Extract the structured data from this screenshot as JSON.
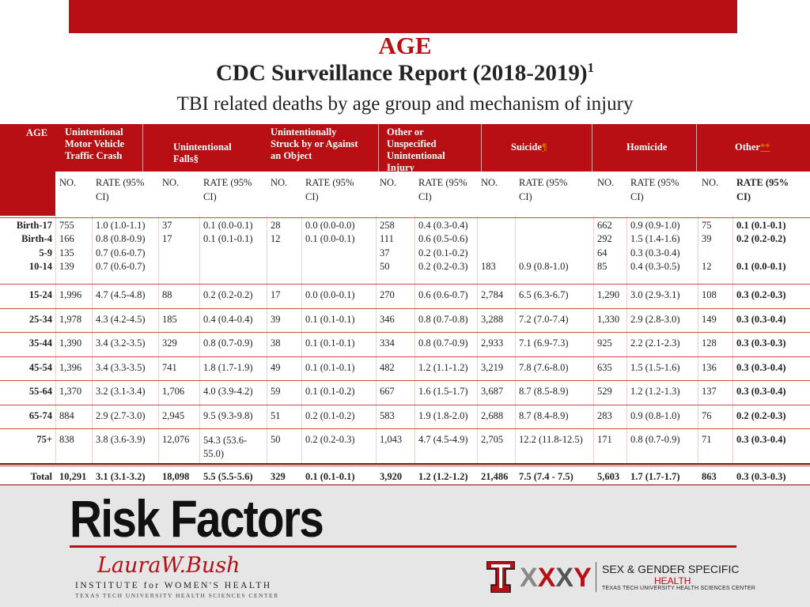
{
  "title": "AGE",
  "report_title": "CDC Surveillance Report (2018-2019)",
  "report_superscript": "1",
  "subtitle": "TBI related deaths by age group and mechanism of injury",
  "header": {
    "age": "AGE",
    "groups": [
      {
        "l1": "Unintentional",
        "l2": "Motor Vehicle",
        "l3": "Traffic Crash",
        "l4": ""
      },
      {
        "l1": "Unintentional",
        "l2": "Falls§",
        "l3": "",
        "l4": ""
      },
      {
        "l1": "Unintentionally",
        "l2": "Struck by or Against",
        "l3": "an Object",
        "l4": ""
      },
      {
        "l1": "Other or",
        "l2": "Unspecified",
        "l3": "Unintentional",
        "l4": "Injury"
      },
      {
        "label": "Suicide",
        "mark": "¶"
      },
      {
        "label": "Homicide"
      },
      {
        "label": "Other",
        "mark": "**"
      }
    ],
    "no_label": "NO.",
    "rate_label_1": "RATE (95%",
    "rate_label_2": "CI)"
  },
  "rows": [
    {
      "age": "Birth-17",
      "v": [
        "755",
        "1.0 (1.0-1.1)",
        "37",
        "0.1 (0.0-0.1)",
        "28",
        "0.0 (0.0-0.0)",
        "258",
        "0.4 (0.3-0.4)",
        "",
        "",
        "662",
        "0.9 (0.9-1.0)",
        "75",
        "0.1 (0.1-0.1)"
      ]
    },
    {
      "age": "Birth-4",
      "v": [
        "166",
        "0.8 (0.8-0.9)",
        "17",
        "0.1 (0.1-0.1)",
        "12",
        "0.1 (0.0-0.1)",
        "111",
        "0.6 (0.5-0.6)",
        "",
        "",
        "292",
        "1.5 (1.4-1.6)",
        "39",
        "0.2 (0.2-0.2)"
      ]
    },
    {
      "age": "5-9",
      "v": [
        "135",
        "0.7 (0.6-0.7)",
        "",
        "",
        "",
        "",
        "37",
        "0.2 (0.1-0.2)",
        "",
        "",
        "64",
        "0.3 (0.3-0.4)",
        "",
        ""
      ]
    },
    {
      "age": "10-14",
      "v": [
        "139",
        "0.7 (0.6-0.7)",
        "",
        "",
        "",
        "",
        "50",
        "0.2 (0.2-0.3)",
        "183",
        "0.9 (0.8-1.0)",
        "85",
        "0.4 (0.3-0.5)",
        "12",
        "0.1 (0.0-0.1)"
      ]
    },
    {
      "age": "15-24",
      "v": [
        "1,996",
        "4.7 (4.5-4.8)",
        "88",
        "0.2 (0.2-0.2)",
        "17",
        "0.0 (0.0-0.1)",
        "270",
        "0.6 (0.6-0.7)",
        "2,784",
        "6.5 (6.3-6.7)",
        "1,290",
        "3.0 (2.9-3.1)",
        "108",
        "0.3 (0.2-0.3)"
      ]
    },
    {
      "age": "25-34",
      "v": [
        "1,978",
        "4.3 (4.2-4.5)",
        "185",
        "0.4 (0.4-0.4)",
        "39",
        "0.1 (0.1-0.1)",
        "346",
        "0.8 (0.7-0.8)",
        "3,288",
        "7.2 (7.0-7.4)",
        "1,330",
        "2.9 (2.8-3.0)",
        "149",
        "0.3 (0.3-0.4)"
      ]
    },
    {
      "age": "35-44",
      "v": [
        "1,390",
        "3.4 (3.2-3.5)",
        "329",
        "0.8 (0.7-0.9)",
        "38",
        "0.1 (0.1-0.1)",
        "334",
        "0.8 (0.7-0.9)",
        "2,933",
        "7.1 (6.9-7.3)",
        "925",
        "2.2 (2.1-2.3)",
        "128",
        "0.3 (0.3-0.3)"
      ]
    },
    {
      "age": "45-54",
      "v": [
        "1,396",
        "3.4 (3.3-3.5)",
        "741",
        "1.8 (1.7-1.9)",
        "49",
        "0.1 (0.1-0.1)",
        "482",
        "1.2 (1.1-1.2)",
        "3,219",
        "7.8 (7.6-8.0)",
        "635",
        "1.5 (1.5-1.6)",
        "136",
        "0.3 (0.3-0.4)"
      ]
    },
    {
      "age": "55-64",
      "v": [
        "1,370",
        "3.2 (3.1-3.4)",
        "1,706",
        "4.0 (3.9-4.2)",
        "59",
        "0.1 (0.1-0.2)",
        "667",
        "1.6 (1.5-1.7)",
        "3,687",
        "8.7 (8.5-8.9)",
        "529",
        "1.2 (1.2-1.3)",
        "137",
        "0.3 (0.3-0.4)"
      ]
    },
    {
      "age": "65-74",
      "v": [
        "884",
        "2.9 (2.7-3.0)",
        "2,945",
        "9.5 (9.3-9.8)",
        "51",
        "0.2 (0.1-0.2)",
        "583",
        "1.9 (1.8-2.0)",
        "2,688",
        "8.7 (8.4-8.9)",
        "283",
        "0.9 (0.8-1.0)",
        "76",
        "0.2 (0.2-0.3)"
      ]
    },
    {
      "age": "75+",
      "v": [
        "838",
        "3.8 (3.6-3.9)",
        "12,076",
        "54.3 (53.6-55.0)",
        "50",
        "0.2 (0.2-0.3)",
        "1,043",
        "4.7 (4.5-4.9)",
        "2,705",
        "12.2 (11.8-12.5)",
        "171",
        "0.8 (0.7-0.9)",
        "71",
        "0.3 (0.3-0.4)"
      ]
    },
    {
      "age": "Total",
      "v": [
        "10,291",
        "3.1 (3.1-3.2)",
        "18,098",
        "5.5 (5.5-5.6)",
        "329",
        "0.1 (0.1-0.1)",
        "3,920",
        "1.2 (1.2-1.2)",
        "21,486",
        "7.5 (7.4 - 7.5)",
        "5,603",
        "1.7 (1.7-1.7)",
        "863",
        "0.3 (0.3-0.3)"
      ]
    }
  ],
  "footer": {
    "heading": "Risk Factors",
    "lwb_signature": "LauraW.Bush",
    "lwb_institute": "INSTITUTE for WOMEN'S HEALTH",
    "lwb_ttu": "TEXAS TECH UNIVERSITY HEALTH SCIENCES CENTER",
    "sgs_logo": "XXXY",
    "sgs_line1": "SEX & GENDER SPECIFIC",
    "sgs_line2": "HEALTH",
    "sgs_line3": "TEXAS TECH UNIVERSITY HEALTH SCIENCES CENTER"
  },
  "colors": {
    "brand_red": "#b70f14",
    "footer_bg": "#e6e6e6"
  }
}
